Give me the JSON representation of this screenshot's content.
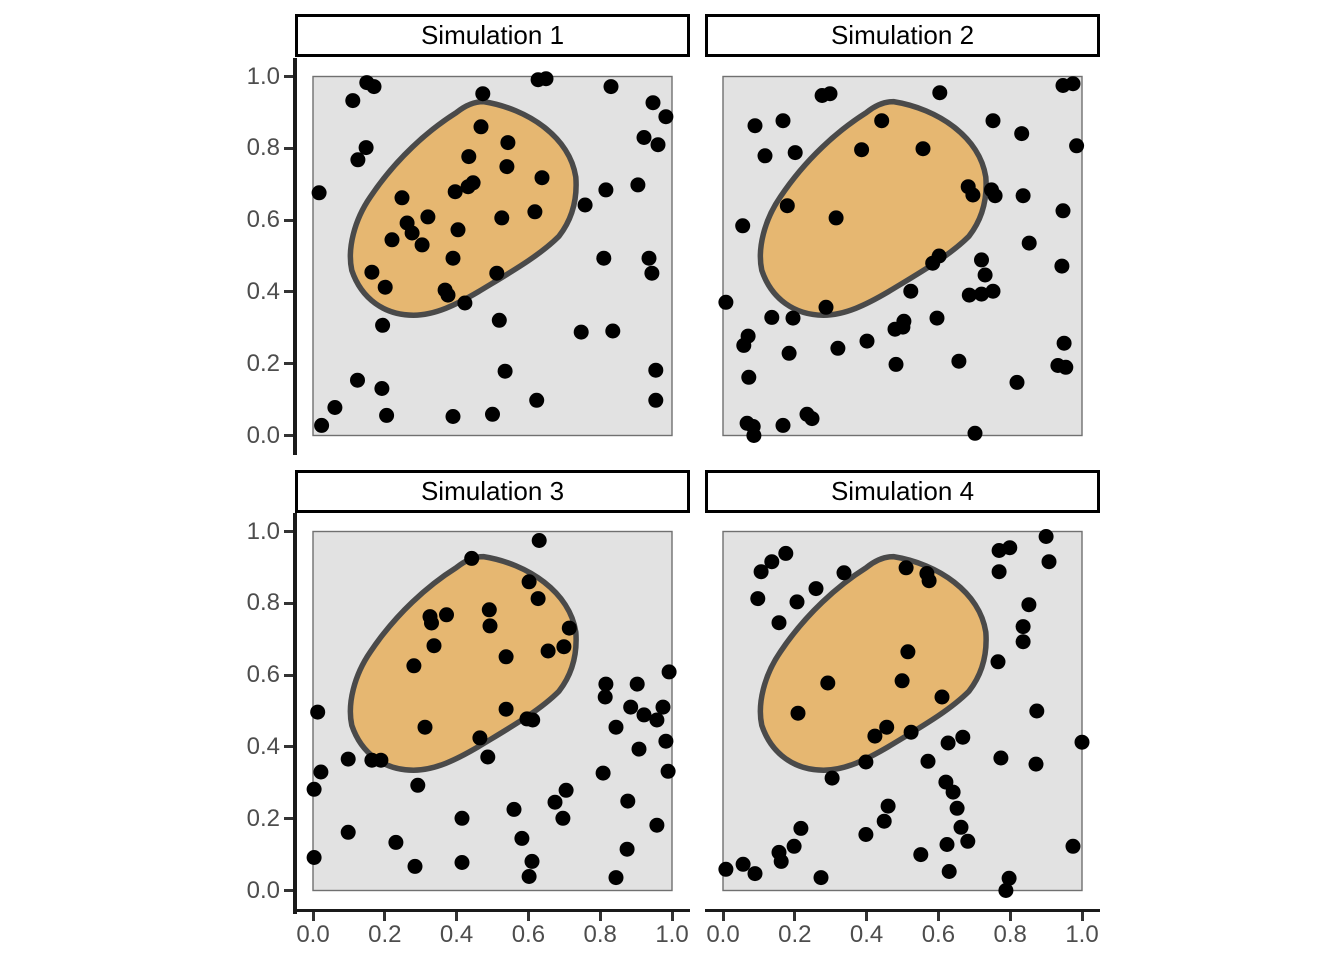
{
  "style": {
    "background": "#FFFFFF",
    "square_fill": "#E2E2E2",
    "square_stroke": "#707070",
    "region_fill": "#E6B771",
    "region_stroke": "#4A4A4A",
    "point_color": "#000000",
    "axis_color": "#1A1A1A",
    "tick_label_color": "#4D4D4D",
    "strip_border_color": "#000000",
    "strip_fill": "#FFFFFF"
  },
  "axes": {
    "x_tick_labels": [
      "0.0",
      "0.2",
      "0.4",
      "0.6",
      "0.8",
      "1.0"
    ],
    "x_tick_values": [
      0.0,
      0.2,
      0.4,
      0.6,
      0.8,
      1.0
    ],
    "y_tick_labels": [
      "1.0",
      "0.8",
      "0.6",
      "0.4",
      "0.2",
      "0.0"
    ],
    "y_tick_values": [
      1.0,
      0.8,
      0.6,
      0.4,
      0.2,
      0.0
    ]
  },
  "chart_data": {
    "type": "scatter",
    "layout": "2x2 facets",
    "xlim": [
      -0.05,
      1.05
    ],
    "ylim": [
      -0.05,
      1.05
    ],
    "grid": false,
    "unit_square": {
      "x": [
        0,
        1
      ],
      "y": [
        0,
        1
      ]
    },
    "region": {
      "name": "highlighted-cluster-region",
      "start": [
        0.475,
        0.93
      ],
      "bezier_segments": [
        [
          0.6,
          0.91,
          0.715,
          0.83,
          0.732,
          0.72
        ],
        [
          0.737,
          0.655,
          0.72,
          0.6,
          0.685,
          0.555
        ],
        [
          0.63,
          0.5,
          0.55,
          0.455,
          0.46,
          0.4
        ],
        [
          0.4,
          0.365,
          0.34,
          0.335,
          0.28,
          0.335
        ],
        [
          0.2,
          0.335,
          0.135,
          0.38,
          0.108,
          0.46
        ],
        [
          0.095,
          0.52,
          0.115,
          0.6,
          0.16,
          0.665
        ],
        [
          0.23,
          0.77,
          0.32,
          0.85,
          0.4,
          0.9
        ],
        [
          0.425,
          0.92,
          0.45,
          0.93,
          0.475,
          0.93
        ]
      ]
    },
    "facets": [
      {
        "label": "Simulation 1",
        "points": [
          [
            0.15,
            0.983
          ],
          [
            0.17,
            0.972
          ],
          [
            0.111,
            0.933
          ],
          [
            0.473,
            0.952
          ],
          [
            0.627,
            0.991
          ],
          [
            0.649,
            0.994
          ],
          [
            0.83,
            0.972
          ],
          [
            0.947,
            0.927
          ],
          [
            0.983,
            0.888
          ],
          [
            0.922,
            0.83
          ],
          [
            0.961,
            0.81
          ],
          [
            0.148,
            0.802
          ],
          [
            0.125,
            0.768
          ],
          [
            0.468,
            0.86
          ],
          [
            0.543,
            0.816
          ],
          [
            0.434,
            0.777
          ],
          [
            0.54,
            0.749
          ],
          [
            0.638,
            0.718
          ],
          [
            0.432,
            0.693
          ],
          [
            0.446,
            0.704
          ],
          [
            0.396,
            0.679
          ],
          [
            0.017,
            0.676
          ],
          [
            0.248,
            0.662
          ],
          [
            0.758,
            0.642
          ],
          [
            0.816,
            0.684
          ],
          [
            0.905,
            0.698
          ],
          [
            0.32,
            0.609
          ],
          [
            0.526,
            0.606
          ],
          [
            0.618,
            0.623
          ],
          [
            0.262,
            0.592
          ],
          [
            0.276,
            0.564
          ],
          [
            0.22,
            0.545
          ],
          [
            0.304,
            0.531
          ],
          [
            0.404,
            0.573
          ],
          [
            0.81,
            0.494
          ],
          [
            0.936,
            0.494
          ],
          [
            0.944,
            0.452
          ],
          [
            0.39,
            0.494
          ],
          [
            0.164,
            0.455
          ],
          [
            0.201,
            0.413
          ],
          [
            0.368,
            0.405
          ],
          [
            0.376,
            0.391
          ],
          [
            0.512,
            0.452
          ],
          [
            0.423,
            0.369
          ],
          [
            0.194,
            0.307
          ],
          [
            0.519,
            0.321
          ],
          [
            0.747,
            0.288
          ],
          [
            0.835,
            0.291
          ],
          [
            0.124,
            0.154
          ],
          [
            0.192,
            0.131
          ],
          [
            0.535,
            0.179
          ],
          [
            0.955,
            0.182
          ],
          [
            0.955,
            0.098
          ],
          [
            0.623,
            0.098
          ],
          [
            0.39,
            0.053
          ],
          [
            0.5,
            0.059
          ],
          [
            0.205,
            0.056
          ],
          [
            0.061,
            0.078
          ],
          [
            0.024,
            0.028
          ]
        ]
      },
      {
        "label": "Simulation 2",
        "points": [
          [
            0.276,
            0.947
          ],
          [
            0.298,
            0.952
          ],
          [
            0.604,
            0.955
          ],
          [
            0.947,
            0.975
          ],
          [
            0.975,
            0.98
          ],
          [
            0.089,
            0.863
          ],
          [
            0.167,
            0.877
          ],
          [
            0.442,
            0.877
          ],
          [
            0.752,
            0.877
          ],
          [
            0.832,
            0.841
          ],
          [
            0.985,
            0.807
          ],
          [
            0.117,
            0.779
          ],
          [
            0.201,
            0.788
          ],
          [
            0.386,
            0.796
          ],
          [
            0.557,
            0.799
          ],
          [
            0.683,
            0.693
          ],
          [
            0.696,
            0.67
          ],
          [
            0.748,
            0.684
          ],
          [
            0.758,
            0.668
          ],
          [
            0.836,
            0.668
          ],
          [
            0.179,
            0.64
          ],
          [
            0.947,
            0.626
          ],
          [
            0.055,
            0.584
          ],
          [
            0.315,
            0.606
          ],
          [
            0.853,
            0.536
          ],
          [
            0.602,
            0.5
          ],
          [
            0.584,
            0.48
          ],
          [
            0.72,
            0.489
          ],
          [
            0.73,
            0.447
          ],
          [
            0.944,
            0.472
          ],
          [
            0.523,
            0.402
          ],
          [
            0.686,
            0.391
          ],
          [
            0.72,
            0.394
          ],
          [
            0.752,
            0.402
          ],
          [
            0.008,
            0.371
          ],
          [
            0.287,
            0.357
          ],
          [
            0.136,
            0.329
          ],
          [
            0.195,
            0.327
          ],
          [
            0.504,
            0.318
          ],
          [
            0.479,
            0.296
          ],
          [
            0.501,
            0.302
          ],
          [
            0.596,
            0.327
          ],
          [
            0.07,
            0.277
          ],
          [
            0.058,
            0.251
          ],
          [
            0.184,
            0.229
          ],
          [
            0.32,
            0.243
          ],
          [
            0.401,
            0.263
          ],
          [
            0.482,
            0.198
          ],
          [
            0.657,
            0.207
          ],
          [
            0.819,
            0.148
          ],
          [
            0.95,
            0.257
          ],
          [
            0.933,
            0.195
          ],
          [
            0.955,
            0.19
          ],
          [
            0.072,
            0.162
          ],
          [
            0.234,
            0.059
          ],
          [
            0.248,
            0.047
          ],
          [
            0.067,
            0.034
          ],
          [
            0.084,
            0.025
          ],
          [
            0.086,
            0.0
          ],
          [
            0.167,
            0.028
          ],
          [
            0.702,
            0.006
          ]
        ]
      },
      {
        "label": "Simulation 3",
        "points": [
          [
            0.63,
            0.975
          ],
          [
            0.442,
            0.925
          ],
          [
            0.602,
            0.86
          ],
          [
            0.627,
            0.813
          ],
          [
            0.491,
            0.782
          ],
          [
            0.326,
            0.763
          ],
          [
            0.33,
            0.745
          ],
          [
            0.372,
            0.768
          ],
          [
            0.493,
            0.737
          ],
          [
            0.714,
            0.731
          ],
          [
            0.337,
            0.682
          ],
          [
            0.655,
            0.667
          ],
          [
            0.699,
            0.679
          ],
          [
            0.538,
            0.651
          ],
          [
            0.281,
            0.626
          ],
          [
            0.816,
            0.575
          ],
          [
            0.814,
            0.539
          ],
          [
            0.903,
            0.575
          ],
          [
            0.992,
            0.609
          ],
          [
            0.885,
            0.511
          ],
          [
            0.975,
            0.511
          ],
          [
            0.922,
            0.489
          ],
          [
            0.958,
            0.475
          ],
          [
            0.013,
            0.497
          ],
          [
            0.538,
            0.505
          ],
          [
            0.596,
            0.478
          ],
          [
            0.612,
            0.475
          ],
          [
            0.844,
            0.455
          ],
          [
            0.312,
            0.455
          ],
          [
            0.983,
            0.416
          ],
          [
            0.465,
            0.425
          ],
          [
            0.908,
            0.394
          ],
          [
            0.487,
            0.372
          ],
          [
            0.098,
            0.366
          ],
          [
            0.164,
            0.363
          ],
          [
            0.189,
            0.363
          ],
          [
            0.022,
            0.33
          ],
          [
            0.808,
            0.327
          ],
          [
            0.989,
            0.332
          ],
          [
            0.003,
            0.282
          ],
          [
            0.292,
            0.293
          ],
          [
            0.705,
            0.279
          ],
          [
            0.674,
            0.246
          ],
          [
            0.877,
            0.249
          ],
          [
            0.56,
            0.226
          ],
          [
            0.696,
            0.201
          ],
          [
            0.415,
            0.201
          ],
          [
            0.958,
            0.182
          ],
          [
            0.098,
            0.162
          ],
          [
            0.582,
            0.145
          ],
          [
            0.231,
            0.134
          ],
          [
            0.875,
            0.115
          ],
          [
            0.003,
            0.092
          ],
          [
            0.61,
            0.081
          ],
          [
            0.284,
            0.067
          ],
          [
            0.415,
            0.078
          ],
          [
            0.602,
            0.039
          ],
          [
            0.844,
            0.036
          ]
        ]
      },
      {
        "label": "Simulation 4",
        "points": [
          [
            0.9,
            0.986
          ],
          [
            0.175,
            0.939
          ],
          [
            0.799,
            0.955
          ],
          [
            0.769,
            0.947
          ],
          [
            0.136,
            0.916
          ],
          [
            0.908,
            0.916
          ],
          [
            0.106,
            0.888
          ],
          [
            0.769,
            0.888
          ],
          [
            0.337,
            0.885
          ],
          [
            0.51,
            0.899
          ],
          [
            0.568,
            0.883
          ],
          [
            0.574,
            0.863
          ],
          [
            0.259,
            0.841
          ],
          [
            0.097,
            0.813
          ],
          [
            0.206,
            0.804
          ],
          [
            0.852,
            0.796
          ],
          [
            0.156,
            0.746
          ],
          [
            0.836,
            0.735
          ],
          [
            0.836,
            0.693
          ],
          [
            0.515,
            0.665
          ],
          [
            0.766,
            0.637
          ],
          [
            0.499,
            0.584
          ],
          [
            0.292,
            0.578
          ],
          [
            0.61,
            0.539
          ],
          [
            0.874,
            0.5
          ],
          [
            0.209,
            0.494
          ],
          [
            0.456,
            0.455
          ],
          [
            0.423,
            0.43
          ],
          [
            0.524,
            0.441
          ],
          [
            0.627,
            0.411
          ],
          [
            0.668,
            0.427
          ],
          [
            1.0,
            0.413
          ],
          [
            0.398,
            0.358
          ],
          [
            0.571,
            0.36
          ],
          [
            0.774,
            0.369
          ],
          [
            0.872,
            0.352
          ],
          [
            0.304,
            0.313
          ],
          [
            0.621,
            0.302
          ],
          [
            0.641,
            0.274
          ],
          [
            0.46,
            0.235
          ],
          [
            0.652,
            0.229
          ],
          [
            0.449,
            0.193
          ],
          [
            0.217,
            0.173
          ],
          [
            0.663,
            0.176
          ],
          [
            0.398,
            0.156
          ],
          [
            0.682,
            0.137
          ],
          [
            0.198,
            0.123
          ],
          [
            0.624,
            0.128
          ],
          [
            0.156,
            0.106
          ],
          [
            0.162,
            0.081
          ],
          [
            0.551,
            0.1
          ],
          [
            0.056,
            0.073
          ],
          [
            0.008,
            0.059
          ],
          [
            0.089,
            0.047
          ],
          [
            0.975,
            0.123
          ],
          [
            0.63,
            0.053
          ],
          [
            0.273,
            0.036
          ],
          [
            0.797,
            0.034
          ],
          [
            0.788,
            0.0
          ]
        ]
      }
    ]
  }
}
